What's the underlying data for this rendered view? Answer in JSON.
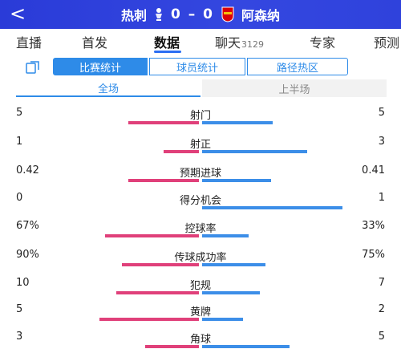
{
  "header": {
    "back_symbol": "<",
    "home_team": "热刺",
    "away_team": "阿森纳",
    "score": "0 – 0",
    "colors": {
      "bg": "#3447e0",
      "home_crest": "#ffffff",
      "away_crest": "#db0007"
    }
  },
  "tabs": [
    {
      "label": "直播",
      "count": ""
    },
    {
      "label": "首发",
      "count": ""
    },
    {
      "label": "数据",
      "count": ""
    },
    {
      "label": "聊天",
      "count": "3129"
    },
    {
      "label": "专家",
      "count": ""
    },
    {
      "label": "预测",
      "count": ""
    }
  ],
  "active_tab": "数据",
  "segments": {
    "match_stats": "比赛统计",
    "player_stats": "球员统计",
    "heatmap": "路径热区"
  },
  "periods": {
    "full": "全场",
    "first_half": "上半场"
  },
  "stats": [
    {
      "label": "射门",
      "home": "5",
      "away": "5",
      "home_share": 0.5,
      "away_share": 0.5
    },
    {
      "label": "射正",
      "home": "1",
      "away": "3",
      "home_share": 0.25,
      "away_share": 0.75
    },
    {
      "label": "预期进球",
      "home": "0.42",
      "away": "0.41",
      "home_share": 0.5,
      "away_share": 0.49
    },
    {
      "label": "得分机会",
      "home": "0",
      "away": "1",
      "home_share": 0.0,
      "away_share": 1.0
    },
    {
      "label": "控球率",
      "home": "67%",
      "away": "33%",
      "home_share": 0.67,
      "away_share": 0.33
    },
    {
      "label": "传球成功率",
      "home": "90%",
      "away": "75%",
      "home_share": 0.55,
      "away_share": 0.45
    },
    {
      "label": "犯规",
      "home": "10",
      "away": "7",
      "home_share": 0.59,
      "away_share": 0.41
    },
    {
      "label": "黄牌",
      "home": "5",
      "away": "2",
      "home_share": 0.71,
      "away_share": 0.29
    },
    {
      "label": "角球",
      "home": "3",
      "away": "5",
      "home_share": 0.38,
      "away_share": 0.62
    }
  ],
  "colors": {
    "home_bar": "#e0407a",
    "away_bar": "#3c8ee8",
    "accent": "#2e8be8"
  }
}
